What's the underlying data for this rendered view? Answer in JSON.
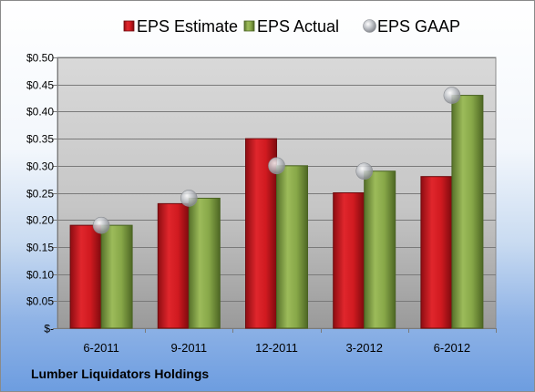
{
  "chart_data": {
    "type": "bar",
    "title": "",
    "xlabel": "",
    "ylabel": "",
    "categories": [
      "6-2011",
      "9-2011",
      "12-2011",
      "3-2012",
      "6-2012"
    ],
    "series": [
      {
        "name": "EPS Estimate",
        "kind": "bar",
        "color": "#c0141b",
        "values": [
          0.19,
          0.23,
          0.35,
          0.25,
          0.28
        ]
      },
      {
        "name": "EPS Actual",
        "kind": "bar",
        "color": "#7a9a3a",
        "values": [
          0.19,
          0.24,
          0.3,
          0.29,
          0.43
        ]
      },
      {
        "name": "EPS GAAP",
        "kind": "marker",
        "color": "#b8bcc2",
        "values": [
          0.19,
          0.24,
          0.3,
          0.29,
          0.43
        ]
      }
    ],
    "ylim": [
      0,
      0.5
    ],
    "yticks": [
      0,
      0.05,
      0.1,
      0.15,
      0.2,
      0.25,
      0.3,
      0.35,
      0.4,
      0.45,
      0.5
    ],
    "ytick_labels": [
      "$-",
      "$0.05",
      "$0.10",
      "$0.15",
      "$0.20",
      "$0.25",
      "$0.30",
      "$0.35",
      "$0.40",
      "$0.45",
      "$0.50"
    ],
    "grid": true,
    "legend_position": "top"
  },
  "caption": "Lumber Liquidators Holdings"
}
